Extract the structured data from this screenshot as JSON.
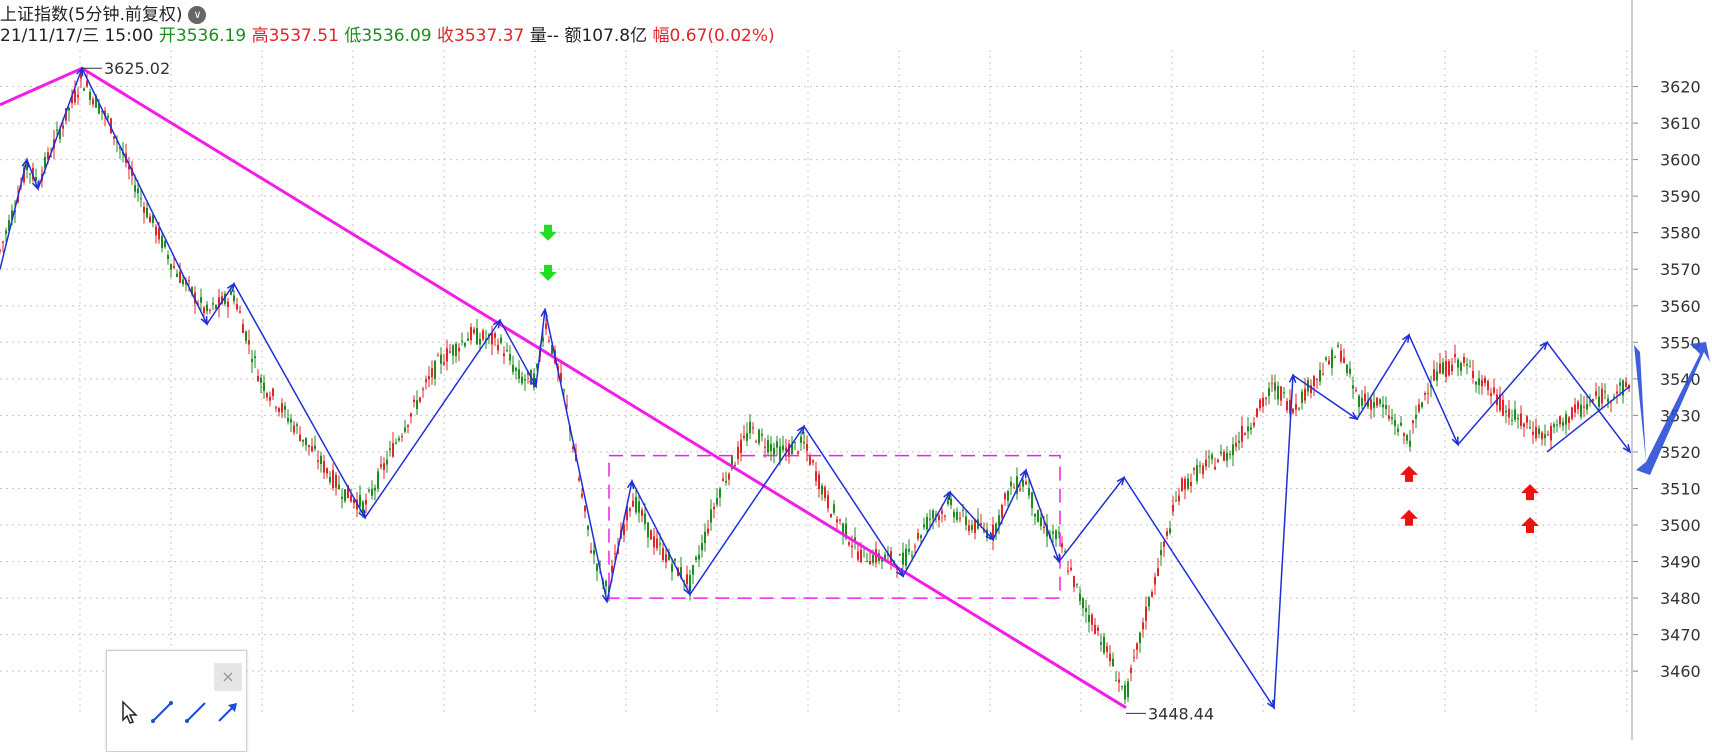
{
  "header": {
    "title": "上证指数(5分钟.前复权)",
    "date": "21/11/17/三 15:00",
    "open_label": "开",
    "open": "3536.19",
    "high_label": "高",
    "high": "3537.51",
    "low_label": "低",
    "low": "3536.09",
    "close_label": "收",
    "close": "3537.37",
    "volume_label": "量--",
    "amount_label": "额",
    "amount": "107.8亿",
    "change_label": "幅",
    "change": "0.67(0.02%)"
  },
  "colors": {
    "up": "#e0262a",
    "down": "#1e8c1e",
    "zigzag": "#1f2fd6",
    "trendline": "#f21ee6",
    "grid": "#c8c8c8",
    "signal_down": "#22dd22",
    "signal_up": "#ee1111"
  },
  "toolbox": {
    "close_icon": "close-icon",
    "tools": [
      "cursor-icon",
      "line-tool-icon",
      "ray-tool-icon",
      "arrow-tool-icon"
    ]
  },
  "chart_data": {
    "type": "line",
    "title": "上证指数(5分钟.前复权)",
    "ylim": [
      3448,
      3630
    ],
    "yticks": [
      3460,
      3470,
      3480,
      3490,
      3500,
      3510,
      3520,
      3530,
      3540,
      3550,
      3560,
      3570,
      3580,
      3590,
      3600,
      3610,
      3620
    ],
    "grid": true,
    "annotations": [
      {
        "text": "3625.02",
        "x": 82,
        "y": 3625.02
      },
      {
        "text": "3448.44",
        "x": 1126,
        "y": 3448.44
      }
    ],
    "zigzag": {
      "name": "zigzag",
      "x": [
        0,
        27,
        38,
        82,
        207,
        234,
        365,
        500,
        536,
        545,
        607,
        632,
        690,
        804,
        903,
        950,
        993,
        1026,
        1059,
        1124,
        1274,
        1293,
        1357,
        1409,
        1458,
        1547,
        1630
      ],
      "y": [
        3570,
        3600,
        3592,
        3625,
        3555,
        3566,
        3502,
        3556,
        3538,
        3559,
        3479,
        3512,
        3481,
        3527,
        3486,
        3509,
        3496,
        3515,
        3490,
        3513,
        3450,
        3541,
        3529,
        3552,
        3522,
        3550,
        3520
      ]
    },
    "zigzag_tail": {
      "x": [
        1547,
        1630
      ],
      "y": [
        3520,
        3538
      ]
    },
    "trendline": {
      "x": [
        0,
        82,
        1126
      ],
      "y": [
        3615,
        3625,
        3450
      ]
    },
    "box": {
      "x": [
        609,
        1060
      ],
      "y": [
        3480,
        3519
      ]
    },
    "signals_down": [
      {
        "x": 548,
        "y": 3580
      },
      {
        "x": 548,
        "y": 3569
      }
    ],
    "signals_up": [
      {
        "x": 1409,
        "y": 3514
      },
      {
        "x": 1409,
        "y": 3502
      },
      {
        "x": 1530,
        "y": 3509
      },
      {
        "x": 1530,
        "y": 3500
      }
    ],
    "price_path": {
      "x": [
        0,
        27,
        38,
        82,
        110,
        140,
        175,
        207,
        234,
        260,
        300,
        340,
        365,
        400,
        440,
        470,
        500,
        520,
        536,
        545,
        565,
        590,
        607,
        632,
        655,
        690,
        720,
        750,
        780,
        804,
        830,
        860,
        903,
        930,
        950,
        970,
        993,
        1010,
        1026,
        1040,
        1059,
        1080,
        1100,
        1126,
        1150,
        1180,
        1200,
        1230,
        1260,
        1274,
        1293,
        1315,
        1340,
        1357,
        1380,
        1409,
        1430,
        1458,
        1480,
        1510,
        1547,
        1570,
        1600,
        1630
      ],
      "y": [
        3575,
        3598,
        3594,
        3622,
        3610,
        3590,
        3570,
        3558,
        3563,
        3540,
        3525,
        3510,
        3505,
        3525,
        3545,
        3552,
        3550,
        3540,
        3540,
        3556,
        3535,
        3495,
        3482,
        3508,
        3495,
        3484,
        3510,
        3526,
        3520,
        3522,
        3505,
        3492,
        3490,
        3502,
        3505,
        3500,
        3498,
        3510,
        3512,
        3500,
        3496,
        3480,
        3470,
        3453,
        3480,
        3510,
        3515,
        3520,
        3532,
        3538,
        3532,
        3540,
        3548,
        3535,
        3533,
        3523,
        3540,
        3545,
        3540,
        3530,
        3524,
        3530,
        3535,
        3538
      ]
    }
  }
}
